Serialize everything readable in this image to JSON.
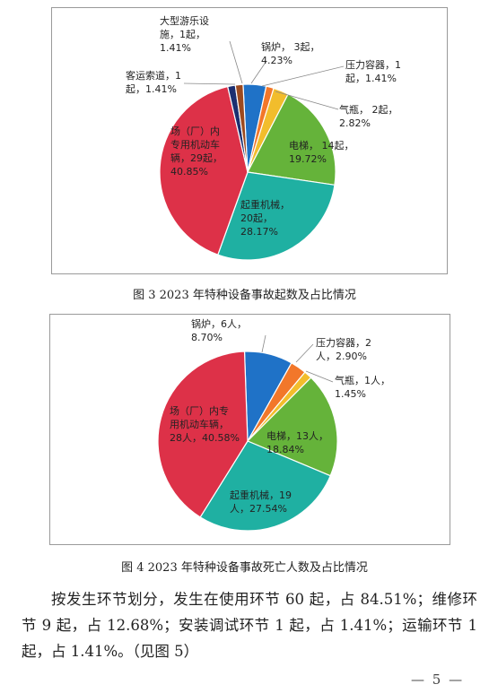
{
  "chart_data": [
    {
      "type": "pie",
      "title": "",
      "categories": [
        "锅炉",
        "压力容器",
        "气瓶",
        "电梯",
        "起重机械",
        "场（厂）内专用机动车辆",
        "客运索道",
        "大型游乐设施"
      ],
      "values": [
        3,
        1,
        2,
        14,
        20,
        29,
        1,
        1
      ],
      "percents": [
        "4.23%",
        "1.41%",
        "2.82%",
        "19.72%",
        "28.17%",
        "40.85%",
        "1.41%",
        "1.41%"
      ],
      "colors": [
        "#1f72c7",
        "#f2772a",
        "#f2bd2c",
        "#65b33a",
        "#1fb0a2",
        "#dd3148",
        "#1b2f70",
        "#9c4a1f"
      ],
      "labels": [
        [
          "锅炉，  3起，",
          "4.23%"
        ],
        [
          "压力容器，1",
          "起，1.41%"
        ],
        [
          "气瓶，  2起，",
          "2.82%"
        ],
        [
          "电梯，  14起，",
          "19.72%"
        ],
        [
          "起重机械，",
          "20起，",
          "28.17%"
        ],
        [
          "场（厂）内",
          "专用机动车",
          "辆，29起，",
          "40.85%"
        ],
        [
          "客运索道，1",
          "起，1.41%"
        ],
        [
          "大型游乐设",
          "施，1起，",
          "1.41%"
        ]
      ]
    },
    {
      "type": "pie",
      "title": "",
      "categories": [
        "锅炉",
        "压力容器",
        "气瓶",
        "电梯",
        "起重机械",
        "场（厂）内专用机动车辆"
      ],
      "values": [
        6,
        2,
        1,
        13,
        19,
        28
      ],
      "percents": [
        "8.70%",
        "2.90%",
        "1.45%",
        "18.84%",
        "27.54%",
        "40.58%"
      ],
      "colors": [
        "#1f72c7",
        "#f2772a",
        "#f2bd2c",
        "#65b33a",
        "#1fb0a2",
        "#dd3148"
      ],
      "labels": [
        [
          "锅炉，6人，",
          "8.70%"
        ],
        [
          "压力容器，2",
          "人，2.90%"
        ],
        [
          "气瓶，1人，",
          "1.45%"
        ],
        [
          "电梯，13人，",
          "18.84%"
        ],
        [
          "起重机械，19",
          "人，27.54%"
        ],
        [
          "场（厂）内专",
          "用机动车辆，",
          "28人，40.58%"
        ]
      ]
    }
  ],
  "captions": {
    "fig3": "图 3   2023 年特种设备事故起数及占比情况",
    "fig4": "图 4   2023 年特种设备事故死亡人数及占比情况"
  },
  "body_text": "按发生环节划分，发生在使用环节 60 起，占 84.51%；维修环节 9 起，占 12.68%；安装调试环节 1 起，占 1.41%；运输环节 1 起，占 1.41%。（见图 5）",
  "page_number": "— 5 —"
}
